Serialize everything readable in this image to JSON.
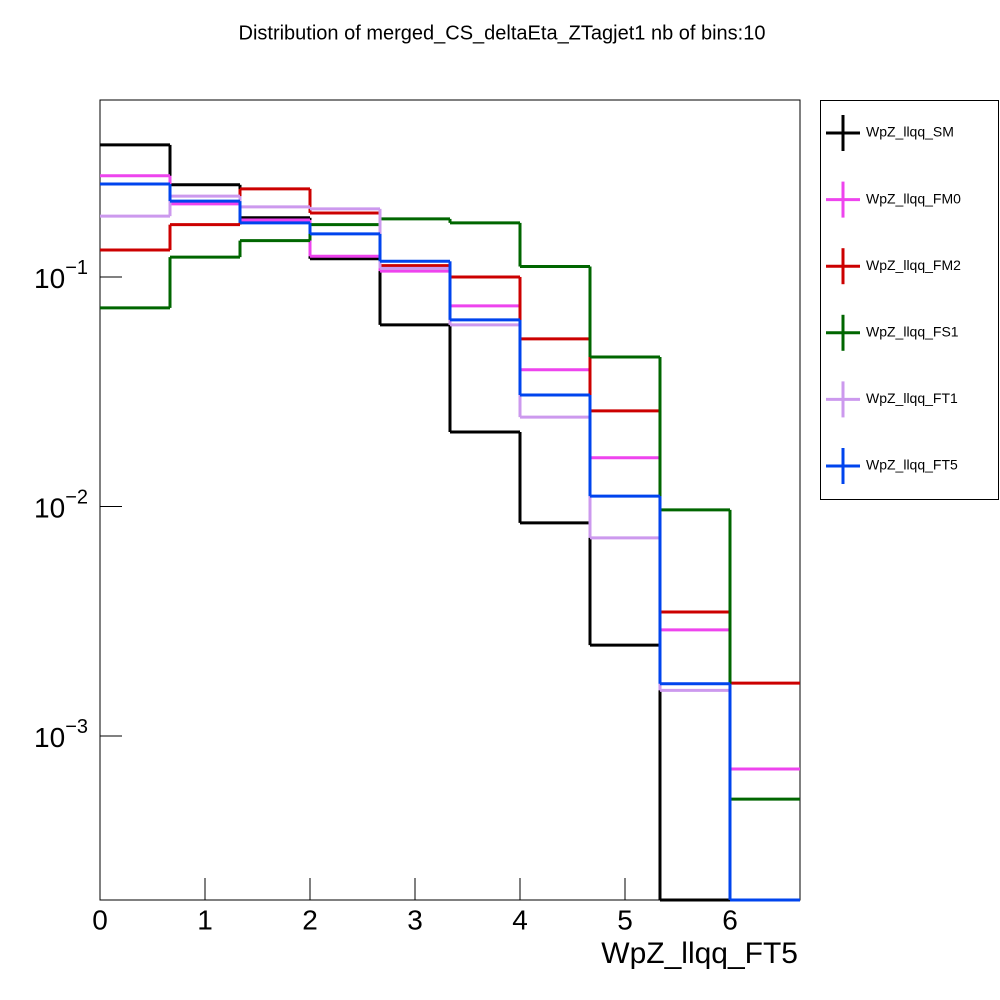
{
  "chart_data": {
    "type": "histogram",
    "title": "Distribution of merged_CS_deltaEta_ZTagjet1 nb of bins:10",
    "x_label": "WpZ_llqq_FT5",
    "bins": [
      0,
      0.6667,
      1.3333,
      2,
      2.6667,
      3.3333,
      4,
      4.6667,
      5.3333,
      6,
      6.6667
    ],
    "xlim": [
      0,
      6.6667
    ],
    "xticks": [
      0,
      1,
      2,
      3,
      4,
      5,
      6
    ],
    "ylim": [
      0.000193,
      0.59
    ],
    "yscale": "log",
    "yticks": [
      {
        "value": 0.1,
        "label": "10^-1"
      },
      {
        "value": 0.01,
        "label": "10^-2"
      },
      {
        "value": 0.001,
        "label": "10^-3"
      }
    ],
    "legend": "outside-right",
    "series": [
      {
        "name": "WpZ_llqq_SM",
        "color": "#000000",
        "values": [
          0.376,
          0.252,
          0.181,
          0.12,
          0.0618,
          0.0211,
          0.00848,
          0.00249,
          0,
          0
        ]
      },
      {
        "name": "WpZ_llqq_FM0",
        "color": "#ee44ee",
        "values": [
          0.276,
          0.208,
          0.177,
          0.123,
          0.106,
          0.0748,
          0.0394,
          0.0163,
          0.0029,
          0.000718
        ]
      },
      {
        "name": "WpZ_llqq_FM2",
        "color": "#cc0000",
        "values": [
          0.131,
          0.169,
          0.242,
          0.19,
          0.112,
          0.1,
          0.0537,
          0.0261,
          0.00347,
          0.0017
        ]
      },
      {
        "name": "WpZ_llqq_FS1",
        "color": "#006600",
        "values": [
          0.0733,
          0.122,
          0.144,
          0.169,
          0.179,
          0.172,
          0.111,
          0.0448,
          0.00966,
          0.000531
        ]
      },
      {
        "name": "WpZ_llqq_FT1",
        "color": "#cc99ee",
        "values": [
          0.184,
          0.225,
          0.202,
          0.198,
          0.109,
          0.0618,
          0.0245,
          0.0073,
          0.00158,
          0
        ]
      },
      {
        "name": "WpZ_llqq_FT5",
        "color": "#0044ee",
        "values": [
          0.254,
          0.214,
          0.172,
          0.154,
          0.117,
          0.065,
          0.0306,
          0.0111,
          0.00169,
          0
        ]
      }
    ]
  }
}
